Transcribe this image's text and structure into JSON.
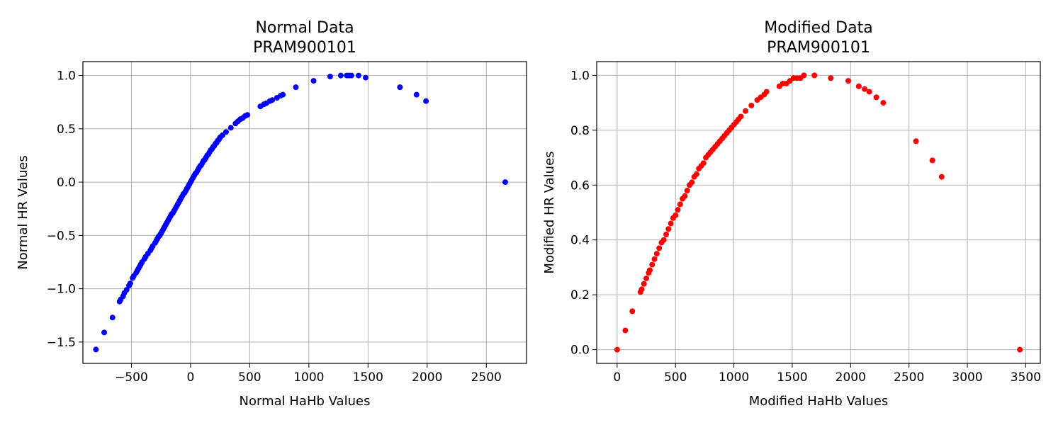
{
  "chart_data": [
    {
      "type": "scatter",
      "title_line1": "Normal Data",
      "title_line2": "PRAM900101",
      "xlabel": "Normal HaHb Values",
      "ylabel": "Normal HR Values",
      "xlim": [
        -910,
        2840
      ],
      "ylim": [
        -1.7,
        1.13
      ],
      "xticks": [
        -500,
        0,
        500,
        1000,
        1500,
        2000,
        2500
      ],
      "xtick_labels": [
        "−500",
        "0",
        "500",
        "1000",
        "1500",
        "2000",
        "2500"
      ],
      "yticks": [
        -1.5,
        -1.0,
        -0.5,
        0.0,
        0.5,
        1.0
      ],
      "ytick_labels": [
        "−1.5",
        "−1.0",
        "−0.5",
        "0.0",
        "0.5",
        "1.0"
      ],
      "grid": true,
      "color": "#0000ff",
      "series": [
        {
          "name": "Normal",
          "x": [
            -800,
            -730,
            -660,
            -600,
            -590,
            -570,
            -560,
            -540,
            -520,
            -510,
            -490,
            -480,
            -460,
            -450,
            -440,
            -430,
            -420,
            -410,
            -390,
            -380,
            -360,
            -340,
            -330,
            -320,
            -300,
            -290,
            -280,
            -270,
            -260,
            -250,
            -240,
            -230,
            -220,
            -210,
            -200,
            -190,
            -180,
            -170,
            -160,
            -150,
            -140,
            -130,
            -120,
            -110,
            -100,
            -90,
            -80,
            -70,
            -60,
            -50,
            -40,
            -30,
            -20,
            -10,
            0,
            10,
            20,
            30,
            40,
            50,
            60,
            70,
            80,
            90,
            100,
            110,
            120,
            130,
            140,
            150,
            160,
            170,
            180,
            190,
            200,
            210,
            220,
            230,
            240,
            250,
            270,
            300,
            340,
            380,
            400,
            420,
            440,
            460,
            480,
            590,
            620,
            640,
            670,
            690,
            730,
            760,
            780,
            890,
            1040,
            1180,
            1270,
            1320,
            1340,
            1360,
            1420,
            1480,
            1770,
            1910,
            1990,
            2660
          ],
          "y": [
            -1.57,
            -1.41,
            -1.27,
            -1.12,
            -1.1,
            -1.07,
            -1.04,
            -1.01,
            -0.97,
            -0.95,
            -0.9,
            -0.88,
            -0.85,
            -0.83,
            -0.81,
            -0.79,
            -0.77,
            -0.75,
            -0.72,
            -0.7,
            -0.67,
            -0.64,
            -0.62,
            -0.6,
            -0.57,
            -0.55,
            -0.53,
            -0.51,
            -0.5,
            -0.48,
            -0.46,
            -0.44,
            -0.42,
            -0.4,
            -0.38,
            -0.36,
            -0.34,
            -0.32,
            -0.3,
            -0.29,
            -0.27,
            -0.25,
            -0.23,
            -0.21,
            -0.19,
            -0.17,
            -0.15,
            -0.13,
            -0.11,
            -0.1,
            -0.08,
            -0.06,
            -0.04,
            -0.02,
            0.0,
            0.02,
            0.04,
            0.06,
            0.08,
            0.09,
            0.11,
            0.13,
            0.15,
            0.16,
            0.18,
            0.2,
            0.21,
            0.23,
            0.25,
            0.26,
            0.28,
            0.3,
            0.31,
            0.33,
            0.34,
            0.36,
            0.37,
            0.39,
            0.4,
            0.42,
            0.44,
            0.47,
            0.51,
            0.55,
            0.57,
            0.59,
            0.6,
            0.62,
            0.63,
            0.71,
            0.73,
            0.74,
            0.76,
            0.77,
            0.79,
            0.81,
            0.82,
            0.89,
            0.95,
            0.99,
            1.0,
            1.0,
            1.0,
            1.0,
            1.0,
            0.98,
            0.89,
            0.82,
            0.76,
            0.0
          ]
        }
      ]
    },
    {
      "type": "scatter",
      "title_line1": "Modified Data",
      "title_line2": "PRAM900101",
      "xlabel": "Modified HaHb Values",
      "ylabel": "Modified HR Values",
      "xlim": [
        -175,
        3625
      ],
      "ylim": [
        -0.05,
        1.05
      ],
      "xticks": [
        0,
        500,
        1000,
        1500,
        2000,
        2500,
        3000,
        3500
      ],
      "xtick_labels": [
        "0",
        "500",
        "1000",
        "1500",
        "2000",
        "2500",
        "3000",
        "3500"
      ],
      "yticks": [
        0.0,
        0.2,
        0.4,
        0.6,
        0.8,
        1.0
      ],
      "ytick_labels": [
        "0.0",
        "0.2",
        "0.4",
        "0.6",
        "0.8",
        "1.0"
      ],
      "grid": true,
      "color": "#ff0000",
      "series": [
        {
          "name": "Modified",
          "x": [
            0,
            70,
            130,
            200,
            210,
            230,
            250,
            270,
            280,
            300,
            320,
            340,
            360,
            380,
            400,
            420,
            440,
            460,
            480,
            500,
            520,
            540,
            560,
            580,
            600,
            620,
            640,
            660,
            680,
            700,
            720,
            740,
            760,
            780,
            800,
            820,
            840,
            860,
            880,
            900,
            920,
            940,
            960,
            980,
            1000,
            1020,
            1040,
            1060,
            1100,
            1150,
            1200,
            1230,
            1260,
            1280,
            1390,
            1420,
            1450,
            1480,
            1510,
            1540,
            1570,
            1600,
            1690,
            1830,
            1980,
            2070,
            2120,
            2160,
            2220,
            2280,
            2560,
            2700,
            2780,
            3450
          ],
          "y": [
            0.0,
            0.07,
            0.14,
            0.21,
            0.22,
            0.24,
            0.26,
            0.28,
            0.29,
            0.31,
            0.33,
            0.35,
            0.37,
            0.39,
            0.4,
            0.42,
            0.44,
            0.46,
            0.48,
            0.49,
            0.51,
            0.53,
            0.55,
            0.56,
            0.58,
            0.6,
            0.61,
            0.63,
            0.64,
            0.66,
            0.67,
            0.68,
            0.7,
            0.71,
            0.72,
            0.73,
            0.74,
            0.75,
            0.76,
            0.77,
            0.78,
            0.79,
            0.8,
            0.81,
            0.82,
            0.83,
            0.84,
            0.85,
            0.87,
            0.89,
            0.91,
            0.92,
            0.93,
            0.94,
            0.96,
            0.97,
            0.97,
            0.98,
            0.99,
            0.99,
            0.99,
            1.0,
            1.0,
            0.99,
            0.98,
            0.96,
            0.95,
            0.94,
            0.92,
            0.9,
            0.76,
            0.69,
            0.63,
            0.0
          ]
        }
      ]
    }
  ]
}
